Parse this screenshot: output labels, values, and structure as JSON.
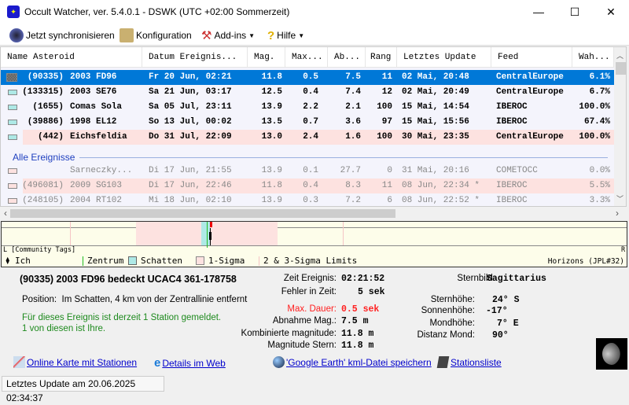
{
  "window": {
    "title": "Occult Watcher, ver. 5.4.0.1 - DSWK (UTC +02:00 Sommerzeit)",
    "minimize": "—",
    "maximize": "☐",
    "close": "✕"
  },
  "toolbar": {
    "sync": "Jetzt synchronisieren",
    "config": "Konfiguration",
    "addins": "Add-ins",
    "help": "Hilfe"
  },
  "table": {
    "columns": [
      "Name Asteroid",
      "Datum Ereignis...",
      "Mag.",
      "Max...",
      "Ab...",
      "Rang",
      "Letztes Update",
      "Feed",
      "Wah..."
    ],
    "rows": [
      {
        "num": "(90335)",
        "name": "2003 FD96",
        "date": "Fr 20 Jun, 02:21",
        "mag": "11.8",
        "max": "0.5",
        "ab": "7.5",
        "rang": "11",
        "update": "02 Mai, 20:48",
        "feed": "CentralEurope",
        "wah": "6.1%",
        "state": "selected"
      },
      {
        "num": "(133315)",
        "name": "2003 SE76",
        "date": "Sa 21 Jun, 03:17",
        "mag": "12.5",
        "max": "0.4",
        "ab": "7.4",
        "rang": "12",
        "update": "02 Mai, 20:49",
        "feed": "CentralEurope",
        "wah": "6.7%"
      },
      {
        "num": "(1655)",
        "name": "Comas Sola",
        "date": "Sa 05 Jul, 23:11",
        "mag": "13.9",
        "max": "2.2",
        "ab": "2.1",
        "rang": "100",
        "update": "15 Mai, 14:54",
        "feed": "IBEROC",
        "wah": "100.0%"
      },
      {
        "num": "(39886)",
        "name": "1998 EL12",
        "date": "So 13 Jul, 00:02",
        "mag": "13.5",
        "max": "0.7",
        "ab": "3.6",
        "rang": "97",
        "update": "15 Mai, 15:56",
        "feed": "IBEROC",
        "wah": "67.4%"
      },
      {
        "num": "(442)",
        "name": "Eichsfeldia",
        "date": "Do 31 Jul, 22:09",
        "mag": "13.0",
        "max": "2.4",
        "ab": "1.6",
        "rang": "100",
        "update": "30 Mai, 23:35",
        "feed": "CentralEurope",
        "wah": "100.0%",
        "state": "highlight"
      }
    ],
    "group_label": "Alle Ereignisse",
    "other_rows": [
      {
        "num": "",
        "name": "Sarneczky...",
        "date": "Di 17 Jun, 21:55",
        "mag": "13.9",
        "max": "0.1",
        "ab": "27.7",
        "rang": "0",
        "update": "31 Mai, 20:16",
        "feed": "COMETOCC",
        "wah": "0.0%"
      },
      {
        "num": "(496081)",
        "name": "2009 SG103",
        "date": "Di 17 Jun, 22:46",
        "mag": "11.8",
        "max": "0.4",
        "ab": "8.3",
        "rang": "11",
        "update": "08 Jun, 22:34 *",
        "feed": "IBEROC",
        "wah": "5.5%",
        "state": "highlight"
      },
      {
        "num": "(248105)",
        "name": "2004 RT102",
        "date": "Mi 18 Jun, 02:10",
        "mag": "13.9",
        "max": "0.3",
        "ab": "7.2",
        "rang": "6",
        "update": "08 Jun, 22:52 *",
        "feed": "IBEROC",
        "wah": "3.3%"
      }
    ]
  },
  "timeline": {
    "left": "L",
    "right": "R",
    "tags": "[Community Tags]",
    "legend": {
      "me": "Ich",
      "center": "Zentrum",
      "shadow": "Schatten",
      "sigma1": "1-Sigma",
      "sigma23": "2 & 3-Sigma Limits"
    },
    "source": "Horizons (JPL#32)"
  },
  "details": {
    "heading": "(90335) 2003 FD96 bedeckt UCAC4 361-178758",
    "position_label": "Position:",
    "position": "Im Schatten, 4 km von der Zentrallinie entfernt",
    "stations": [
      "Für dieses Ereignis ist derzeit 1 Station gemeldet.",
      "1 von diesen ist Ihre."
    ],
    "fields": [
      {
        "label": "Zeit Ereignis:",
        "value": "02:21:52"
      },
      {
        "label": "Fehler in Zeit:",
        "value": "5 sek"
      },
      {
        "label": "Max. Dauer:",
        "value": "0.5 sek",
        "color": "#ff2020"
      },
      {
        "label": "Abnahme Mag.:",
        "value": "7.5 m"
      },
      {
        "label": "Kombinierte magnitude:",
        "value": "11.8 m"
      },
      {
        "label": "Magnitude Stern:",
        "value": "11.8 m"
      }
    ],
    "constellation": {
      "label": "Sternbild:",
      "value": "Sagittarius"
    },
    "alt": [
      {
        "label": "Sternhöhe:",
        "value": "24° S"
      },
      {
        "label": "Sonnenhöhe:",
        "value": "-17°"
      },
      {
        "label": "Mondhöhe:",
        "value": "7° E"
      },
      {
        "label": "Distanz Mond:",
        "value": "90°"
      }
    ],
    "links": {
      "map": "Online Karte mit Stationen",
      "web": "Details im Web",
      "kml": "'Google Earth' kml-Datei speichern",
      "stations": "Stationsliste"
    }
  },
  "status": "Letztes Update am 20.06.2025 02:34:37",
  "colors": {
    "selection": "#0078d7",
    "highlight": "#fde2e0",
    "shadow": "#aee9e6",
    "sigma": "#fde2e0",
    "center": "#22bb22",
    "link": "#0000cc"
  }
}
